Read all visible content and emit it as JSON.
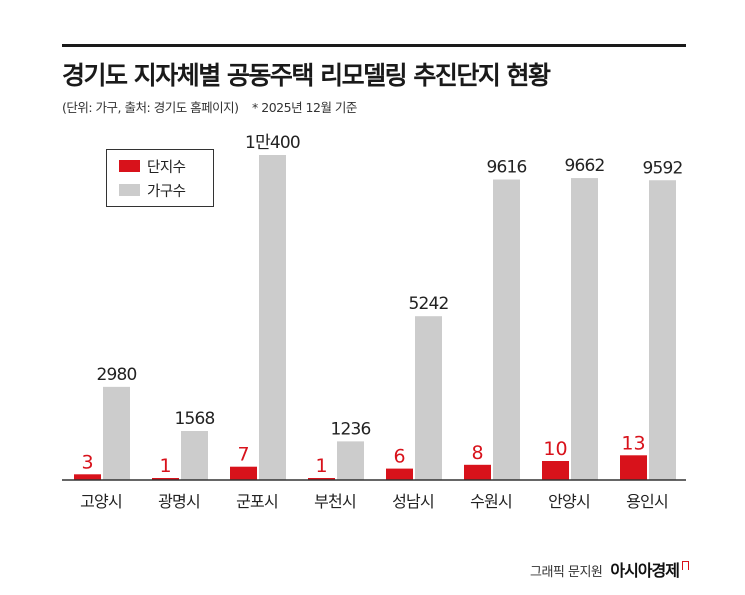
{
  "title": "경기도 지자체별 공동주택 리모델링 추진단지 현황",
  "subtitle": "(단위: 가구, 출처: 경기도 홈페이지)",
  "note": "* 2025년 12월 기준",
  "credit": {
    "author": "그래픽 문지원",
    "brand": "아시아경제"
  },
  "colors": {
    "series_units": "#d8121b",
    "series_households": "#cccccc",
    "axis": "#333333"
  },
  "chart_data": {
    "type": "bar",
    "categories": [
      "고양시",
      "광명시",
      "군포시",
      "부천시",
      "성남시",
      "수원시",
      "안양시",
      "용인시"
    ],
    "series": [
      {
        "name": "단지수",
        "values": [
          3,
          1,
          7,
          1,
          6,
          8,
          10,
          13
        ],
        "labels": [
          "3",
          "1",
          "7",
          "1",
          "6",
          "8",
          "10",
          "13"
        ]
      },
      {
        "name": "가구수",
        "values": [
          2980,
          1568,
          10400,
          1236,
          5242,
          9616,
          9662,
          9592
        ],
        "labels": [
          "2980",
          "1568",
          "1만400",
          "1236",
          "5242",
          "9616",
          "9662",
          "9592"
        ]
      }
    ],
    "legend": "top-left",
    "grid": false
  }
}
